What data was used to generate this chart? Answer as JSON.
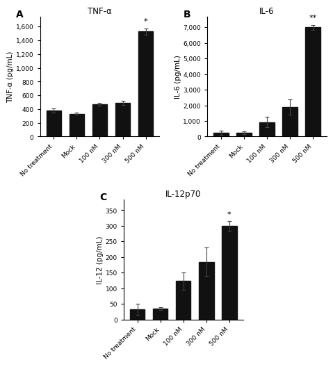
{
  "panels": [
    {
      "label": "A",
      "title": "TNF-α",
      "ylabel": "TNF-α (pg/mL)",
      "categories": [
        "No treatment",
        "Mock",
        "100 nM",
        "300 nM",
        "500 nM"
      ],
      "values": [
        380,
        330,
        470,
        490,
        1530
      ],
      "errors": [
        30,
        15,
        22,
        35,
        45
      ],
      "ylim": [
        0,
        1750
      ],
      "yticks": [
        0,
        200,
        400,
        600,
        800,
        1000,
        1200,
        1400,
        1600
      ],
      "ytick_labels": [
        "0",
        "200",
        "400",
        "600",
        "800",
        "1,000",
        "1,200",
        "1,400",
        "1,600"
      ],
      "sig_bar": [
        4
      ],
      "sig_text": [
        "*"
      ]
    },
    {
      "label": "B",
      "title": "IL-6",
      "ylabel": "IL-6 (pg/mL)",
      "categories": [
        "No treatment",
        "Mock",
        "100 nM",
        "300 nM",
        "500 nM"
      ],
      "values": [
        240,
        230,
        920,
        1900,
        7000
      ],
      "errors": [
        120,
        80,
        330,
        480,
        150
      ],
      "ylim": [
        0,
        7700
      ],
      "yticks": [
        0,
        1000,
        2000,
        3000,
        4000,
        5000,
        6000,
        7000
      ],
      "ytick_labels": [
        "0",
        "1,000",
        "2,000",
        "3,000",
        "4,000",
        "5,000",
        "6,000",
        "7,000"
      ],
      "sig_bar": [
        4
      ],
      "sig_text": [
        "**"
      ]
    },
    {
      "label": "C",
      "title": "IL-12p70",
      "ylabel": "IL-12 (pg/mL)",
      "categories": [
        "No treatment",
        "Mock",
        "100 nM",
        "300 nM",
        "500 nM"
      ],
      "values": [
        33,
        35,
        123,
        185,
        300
      ],
      "errors": [
        18,
        5,
        28,
        45,
        15
      ],
      "ylim": [
        0,
        385
      ],
      "yticks": [
        0,
        50,
        100,
        150,
        200,
        250,
        300,
        350
      ],
      "ytick_labels": [
        "0",
        "50",
        "100",
        "150",
        "200",
        "250",
        "300",
        "350"
      ],
      "sig_bar": [
        4
      ],
      "sig_text": [
        "*"
      ]
    }
  ],
  "bar_color": "#111111",
  "bar_width": 0.65,
  "tick_fontsize": 6.5,
  "label_fontsize": 7.5,
  "title_fontsize": 8.5,
  "panel_label_fontsize": 10,
  "background_color": "#ffffff",
  "sig_fontsize": 8
}
